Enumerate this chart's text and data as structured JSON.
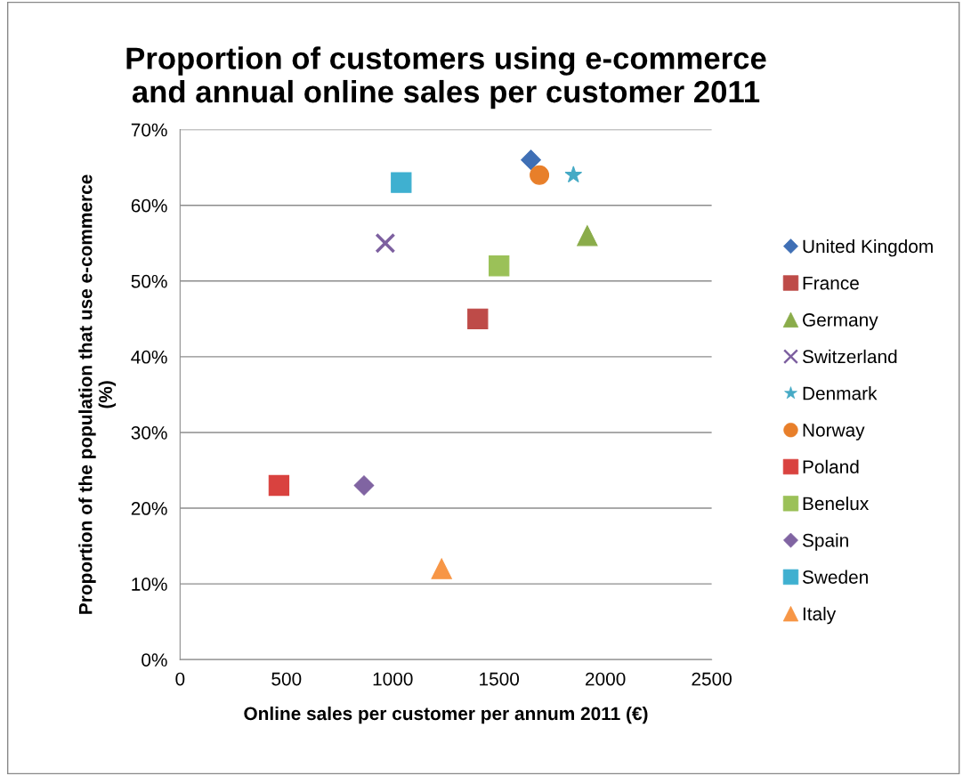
{
  "chart_data": {
    "type": "scatter",
    "title": "Proportion of customers using e-commerce\nand annual online sales per customer 2011",
    "xlabel": "Online sales per customer per annum 2011 (€)",
    "ylabel": "Proportion of the population that use e-commerce\n(%)",
    "xlim": [
      0,
      2500
    ],
    "xticks": [
      0,
      500,
      1000,
      1500,
      2000,
      2500
    ],
    "ylim": [
      0,
      70
    ],
    "yticks": [
      {
        "value": 0,
        "label": "0%"
      },
      {
        "value": 10,
        "label": "10%"
      },
      {
        "value": 20,
        "label": "20%"
      },
      {
        "value": 30,
        "label": "30%"
      },
      {
        "value": 40,
        "label": "40%"
      },
      {
        "value": 50,
        "label": "50%"
      },
      {
        "value": 60,
        "label": "60%"
      },
      {
        "value": 70,
        "label": "70%"
      }
    ],
    "grid": "y",
    "legend": "right",
    "series": [
      {
        "name": "United Kingdom",
        "color": "#3f6fb5",
        "marker": "diamond",
        "x": [
          1650
        ],
        "values": [
          66
        ]
      },
      {
        "name": "France",
        "color": "#be4b48",
        "marker": "square",
        "x": [
          1400
        ],
        "values": [
          45
        ]
      },
      {
        "name": "Germany",
        "color": "#8aac4a",
        "marker": "triangle",
        "x": [
          1915
        ],
        "values": [
          56
        ]
      },
      {
        "name": "Switzerland",
        "color": "#7d60a0",
        "marker": "cross",
        "x": [
          965
        ],
        "values": [
          55
        ]
      },
      {
        "name": "Denmark",
        "color": "#46aac5",
        "marker": "star",
        "x": [
          1850
        ],
        "values": [
          64
        ]
      },
      {
        "name": "Norway",
        "color": "#e87f2a",
        "marker": "circle",
        "x": [
          1690
        ],
        "values": [
          64
        ]
      },
      {
        "name": "Poland",
        "color": "#d9423f",
        "marker": "square",
        "x": [
          465
        ],
        "values": [
          23
        ]
      },
      {
        "name": "Benelux",
        "color": "#9bc158",
        "marker": "square",
        "x": [
          1500
        ],
        "values": [
          52
        ]
      },
      {
        "name": "Spain",
        "color": "#8064a2",
        "marker": "diamond",
        "x": [
          865
        ],
        "values": [
          23
        ]
      },
      {
        "name": "Sweden",
        "color": "#3fb0d0",
        "marker": "square",
        "x": [
          1040
        ],
        "values": [
          63
        ]
      },
      {
        "name": "Italy",
        "color": "#f79646",
        "marker": "triangle",
        "x": [
          1230
        ],
        "values": [
          12
        ]
      }
    ]
  }
}
